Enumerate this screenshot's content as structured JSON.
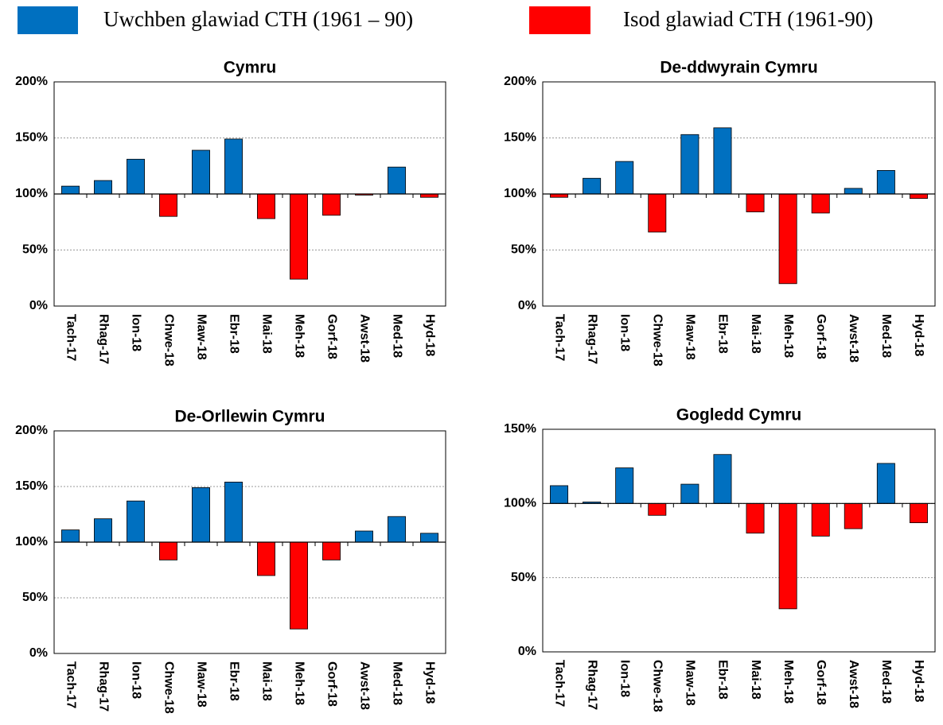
{
  "legend": [
    {
      "name": "Uwchben glawiad CTH (1961 – 90)",
      "color": "#0070c0"
    },
    {
      "name": "Isod glawiad CTH (1961-90)",
      "color": "#ff0000"
    }
  ],
  "chart_data": [
    {
      "type": "bar",
      "title": "Cymru",
      "categories": [
        "Tach-17",
        "Rhag-17",
        "Ion-18",
        "Chwe-18",
        "Maw-18",
        "Ebr-18",
        "Mai-18",
        "Meh-18",
        "Gorf-18",
        "Awst-18",
        "Med-18",
        "Hyd-18"
      ],
      "values": [
        107,
        112,
        131,
        80,
        139,
        149,
        78,
        24,
        81,
        99,
        124,
        97
      ],
      "baseline": 100,
      "ylim": [
        0,
        200
      ],
      "yticks": [
        {
          "value": 0,
          "label": "0%"
        },
        {
          "value": 50,
          "label": "50%"
        },
        {
          "value": 100,
          "label": "100%"
        },
        {
          "value": 150,
          "label": "150%"
        },
        {
          "value": 200,
          "label": "200%"
        }
      ],
      "grid": true
    },
    {
      "type": "bar",
      "title": "De-ddwyrain Cymru",
      "categories": [
        "Tach-17",
        "Rhag-17",
        "Ion-18",
        "Chwe-18",
        "Maw-18",
        "Ebr-18",
        "Mai-18",
        "Meh-18",
        "Gorf-18",
        "Awst-18",
        "Med-18",
        "Hyd-18"
      ],
      "values": [
        97,
        114,
        129,
        66,
        153,
        159,
        84,
        20,
        83,
        105,
        121,
        96
      ],
      "baseline": 100,
      "ylim": [
        0,
        200
      ],
      "yticks": [
        {
          "value": 0,
          "label": "0%"
        },
        {
          "value": 50,
          "label": "50%"
        },
        {
          "value": 100,
          "label": "100%"
        },
        {
          "value": 150,
          "label": "150%"
        },
        {
          "value": 200,
          "label": "200%"
        }
      ],
      "grid": true
    },
    {
      "type": "bar",
      "title": "De-Orllewin Cymru",
      "categories": [
        "Tach-17",
        "Rhag-17",
        "Ion-18",
        "Chwe-18",
        "Maw-18",
        "Ebr-18",
        "Mai-18",
        "Meh-18",
        "Gorf-18",
        "Awst-18",
        "Med-18",
        "Hyd-18"
      ],
      "values": [
        111,
        121,
        137,
        84,
        149,
        154,
        70,
        22,
        84,
        110,
        123,
        108
      ],
      "baseline": 100,
      "ylim": [
        0,
        200
      ],
      "yticks": [
        {
          "value": 0,
          "label": "0%"
        },
        {
          "value": 50,
          "label": "50%"
        },
        {
          "value": 100,
          "label": "100%"
        },
        {
          "value": 150,
          "label": "150%"
        },
        {
          "value": 200,
          "label": "200%"
        }
      ],
      "grid": true
    },
    {
      "type": "bar",
      "title": "Gogledd Cymru",
      "categories": [
        "Tach-17",
        "Rhag-17",
        "Ion-18",
        "Chwe-18",
        "Maw-18",
        "Ebr-18",
        "Mai-18",
        "Meh-18",
        "Gorf-18",
        "Awst-18",
        "Med-18",
        "Hyd-18"
      ],
      "values": [
        112,
        101,
        124,
        92,
        113,
        133,
        80,
        29,
        78,
        83,
        127,
        87
      ],
      "baseline": 100,
      "ylim": [
        0,
        150
      ],
      "yticks": [
        {
          "value": 0,
          "label": "0%"
        },
        {
          "value": 50,
          "label": "50%"
        },
        {
          "value": 100,
          "label": "100%"
        },
        {
          "value": 150,
          "label": "150%"
        }
      ],
      "grid": true
    }
  ]
}
